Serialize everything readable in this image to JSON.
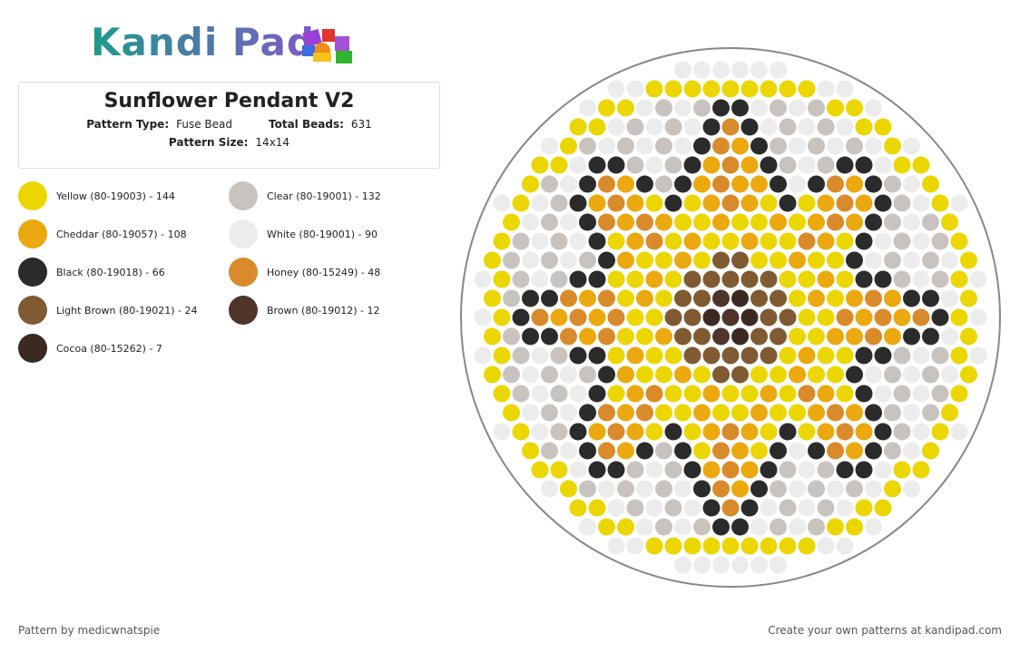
{
  "header": {
    "logo": "Kandi Pad"
  },
  "pattern": {
    "title": "Sunflower Pendant V2",
    "fields": [
      {
        "label": "Pattern Type:",
        "value": "Fuse Bead"
      },
      {
        "label": "Total Beads:",
        "value": 631
      },
      {
        "label": "Pattern Size:",
        "value": "14x14"
      }
    ]
  },
  "colors": [
    {
      "name": "Yellow (80-19003) - 144",
      "color": "#ecd600"
    },
    {
      "name": "Clear (80-19001) - 132",
      "color": "#c9c3c0"
    },
    {
      "name": "Cheddar (80-19057) - 108",
      "color": "#eba80f"
    },
    {
      "name": "White (80-19001) - 90",
      "color": "#ececec"
    },
    {
      "name": "Black (80-19018) - 66",
      "color": "#2b2b2b"
    },
    {
      "name": "Honey (80-15249) - 48",
      "color": "#d98a2a"
    },
    {
      "name": "Light Brown (80-19021) - 24",
      "color": "#7f5a32"
    },
    {
      "name": "Brown (80-19012) - 12",
      "color": "#4e342b"
    },
    {
      "name": "Cocoa (80-15262) - 7",
      "color": "#3a2a22"
    }
  ],
  "footer": {
    "author": "Pattern by medicwnatspie",
    "link": "Create your own patterns at kandipad.com"
  }
}
